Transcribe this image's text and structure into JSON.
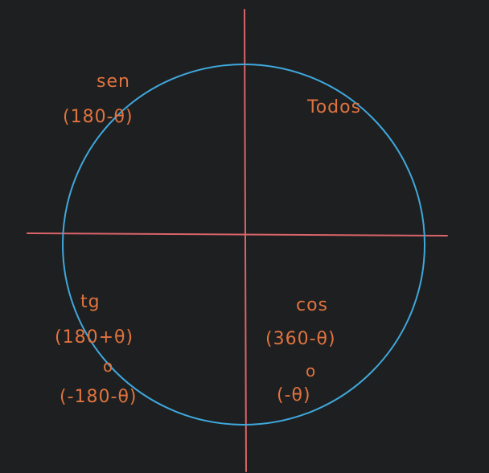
{
  "colors": {
    "background": "#1e1f20",
    "axes": "#d9646a",
    "circle": "#3fa8dc",
    "text": "#e0733f"
  },
  "quadrants": {
    "q1": {
      "name": "Todos"
    },
    "q2": {
      "name": "sen",
      "angle": "(180-θ)"
    },
    "q3": {
      "name": "tg",
      "angle": "(180+θ)",
      "or": "o",
      "alt": "(-180-θ)"
    },
    "q4": {
      "name": "cos",
      "angle": "(360-θ)",
      "or": "o",
      "alt": "(-θ)"
    }
  }
}
